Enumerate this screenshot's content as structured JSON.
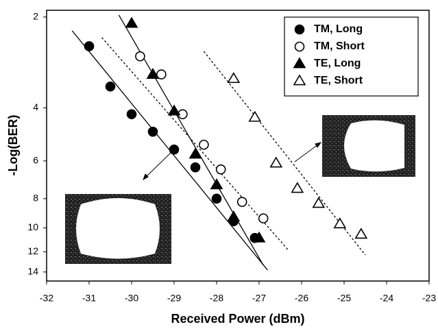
{
  "chart_data": {
    "type": "scatter",
    "x_label": "Received Power (dBm)",
    "y_label": "-Log(BER)",
    "xlim": [
      -32,
      -23
    ],
    "xticks": [
      -32,
      -31,
      -30,
      -29,
      -28,
      -27,
      -26,
      -25,
      -24,
      -23
    ],
    "ylim": [
      1.9,
      15
    ],
    "yticks": [
      2,
      4,
      6,
      8,
      10,
      12,
      14
    ],
    "y_scale": "log",
    "y_inverted": true,
    "legend_position": "upper right",
    "series": [
      {
        "name": "TM, Long",
        "color": "#000000",
        "marker": "circle",
        "filled": true,
        "x": [
          -31,
          -30.5,
          -30,
          -29.5,
          -29,
          -28.5,
          -28,
          -27.6,
          -27.1
        ],
        "values": [
          2.5,
          3.4,
          4.2,
          4.8,
          5.5,
          6.3,
          8,
          9.5,
          10.8
        ]
      },
      {
        "name": "TM, Short",
        "color": "#000000",
        "marker": "circle",
        "filled": false,
        "x": [
          -29.8,
          -29.3,
          -28.8,
          -28.3,
          -27.9,
          -27.4,
          -26.9
        ],
        "values": [
          2.7,
          3.1,
          4.2,
          5.3,
          6.4,
          8.2,
          9.3
        ]
      },
      {
        "name": "TE, Long",
        "color": "#000000",
        "marker": "triangle",
        "filled": true,
        "x": [
          -30,
          -29.5,
          -29,
          -28.5,
          -28,
          -27.6,
          -27
        ],
        "values": [
          2.1,
          3.1,
          4.1,
          5.7,
          7.2,
          9.2,
          10.8
        ]
      },
      {
        "name": "TE, Short",
        "color": "#000000",
        "marker": "triangle",
        "filled": false,
        "x": [
          -27.6,
          -27.1,
          -26.6,
          -26.1,
          -25.6,
          -25.1,
          -24.6
        ],
        "values": [
          3.2,
          4.3,
          6.1,
          7.4,
          8.3,
          9.7,
          10.5
        ]
      }
    ],
    "fit_lines": [
      {
        "color": "#000000",
        "dashed": false,
        "x": [
          -31.4,
          -26.8
        ],
        "values": [
          2.22,
          13.8
        ]
      },
      {
        "color": "#000000",
        "dashed": true,
        "x": [
          -30.7,
          -26.3
        ],
        "values": [
          2.34,
          11.9
        ]
      },
      {
        "color": "#000000",
        "dashed": false,
        "x": [
          -30.3,
          -26.9
        ],
        "values": [
          1.97,
          13.3
        ]
      },
      {
        "color": "#000000",
        "dashed": true,
        "x": [
          -28.3,
          -24.5
        ],
        "values": [
          2.6,
          12.3
        ]
      }
    ]
  }
}
